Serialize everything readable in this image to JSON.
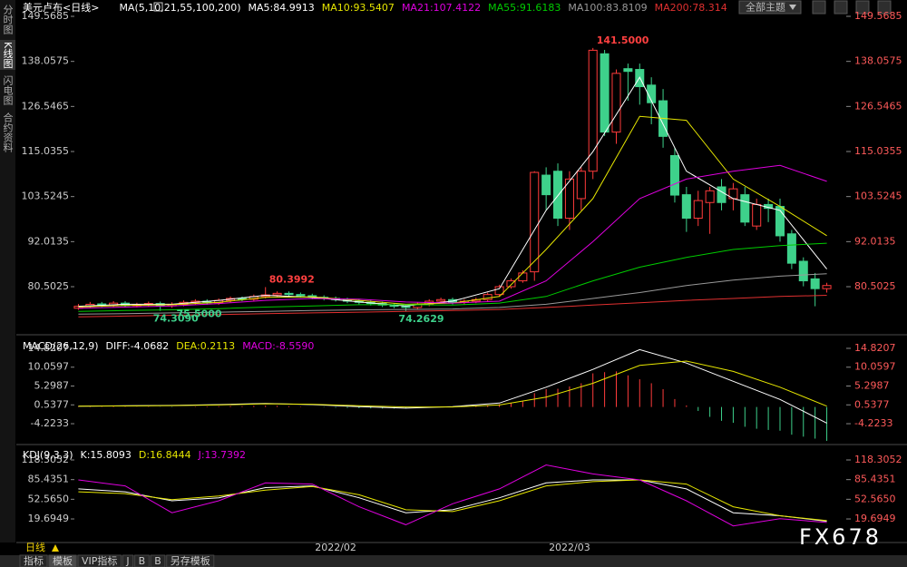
{
  "sidebar": [
    "分时图",
    "K线图",
    "闪电图",
    "合约资料"
  ],
  "toolbar": {
    "theme_button": "全部主题"
  },
  "chart_data": [
    {
      "type": "candlestick",
      "title": "美元卢布<日线>",
      "indicator": "MA(5,10,21,55,100,200)",
      "categories": [
        null,
        null,
        null,
        null,
        null,
        null,
        null,
        null,
        null,
        null,
        null,
        null,
        null,
        null,
        null,
        null,
        null,
        null,
        null,
        null,
        null,
        null,
        "2022/02",
        null,
        null,
        null,
        null,
        null,
        null,
        null,
        null,
        null,
        null,
        null,
        null,
        null,
        null,
        null,
        null,
        null,
        null,
        null,
        "2022/03",
        null,
        null,
        null,
        null,
        null,
        null,
        null,
        null,
        null,
        null,
        null,
        null,
        null,
        null,
        null,
        null,
        null,
        null,
        null,
        null,
        null,
        null
      ],
      "open": [
        75.0,
        75.5,
        76.1,
        75.8,
        76.3,
        75.7,
        75.9,
        76.2,
        75.6,
        76.0,
        76.5,
        76.8,
        76.4,
        77.0,
        77.5,
        77.3,
        78.0,
        78.4,
        78.8,
        78.5,
        78.2,
        77.8,
        77.5,
        77.2,
        76.8,
        76.5,
        76.2,
        75.8,
        75.5,
        75.2,
        76.0,
        76.8,
        77.2,
        76.5,
        76.8,
        77.2,
        78.5,
        80.5,
        82.0,
        84.3,
        109,
        110,
        98,
        103,
        110,
        140,
        120,
        136.2,
        136,
        132,
        128,
        114,
        104,
        98,
        102,
        106,
        103,
        104,
        96,
        101.5,
        101,
        94,
        87,
        82.5,
        80
      ],
      "high": [
        76.1,
        76.6,
        76.6,
        76.8,
        76.8,
        76.4,
        76.7,
        76.7,
        76.5,
        77.0,
        77.3,
        77.3,
        77.5,
        78.0,
        78.0,
        78.5,
        80.3992,
        79.3,
        79.3,
        79.0,
        78.7,
        78.3,
        78.0,
        77.7,
        77.3,
        77.0,
        76.7,
        76.3,
        76.0,
        76.5,
        77.3,
        77.7,
        77.7,
        77.3,
        77.7,
        79.0,
        81.0,
        82.6,
        84.7,
        110,
        111,
        112,
        110,
        111,
        141.5,
        141,
        136,
        137.5,
        137.5,
        134,
        131,
        116,
        106,
        105,
        106,
        108,
        107,
        106,
        103,
        103,
        103,
        95,
        88,
        84,
        81.5
      ],
      "low": [
        74.6,
        75.0,
        75.3,
        75.3,
        75.2,
        75.2,
        75.4,
        74.309,
        75.1,
        75.5,
        76.0,
        75.9,
        75.9,
        76.5,
        76.8,
        76.8,
        77.5,
        77.9,
        78.0,
        77.7,
        77.3,
        77.0,
        76.7,
        76.3,
        76.0,
        75.7,
        75.3,
        75.0,
        74.2629,
        74.7,
        75.5,
        76.3,
        76.0,
        76.0,
        76.3,
        76.7,
        78.0,
        80.0,
        81.5,
        82,
        100,
        96,
        95,
        100,
        108,
        119,
        117,
        128,
        127,
        122,
        116,
        102,
        94.5,
        96,
        94,
        100,
        100,
        96,
        95,
        97,
        92,
        85,
        80.6,
        75.5,
        79
      ],
      "close": [
        75.5,
        76.0,
        75.8,
        76.3,
        75.7,
        75.9,
        76.2,
        75.6,
        76.0,
        76.5,
        76.8,
        76.4,
        77.0,
        77.5,
        77.3,
        78.0,
        78.4,
        78.8,
        78.5,
        78.2,
        77.8,
        77.5,
        77.2,
        76.8,
        76.5,
        76.2,
        75.8,
        75.5,
        75.2,
        76.0,
        76.8,
        77.2,
        76.5,
        76.8,
        77.2,
        78.5,
        80.5,
        82.0,
        84.0,
        109.7,
        104,
        98,
        108,
        110,
        140.9,
        120,
        135,
        135.5,
        131.6,
        127.5,
        118.9,
        103.9,
        98,
        102.5,
        105,
        102,
        105.5,
        97,
        101.5,
        100.5,
        93.5,
        86.5,
        82,
        80,
        80.8
      ],
      "up_color": "#ff3b3b",
      "down_color": "#3ed18b",
      "ylim": [
        69.15,
        149.5685
      ],
      "yticks": [
        80.5025,
        92.0135,
        103.5245,
        115.0355,
        126.5465,
        138.0575,
        149.5685
      ],
      "annotations": [
        {
          "value": 141.5,
          "label": "141.5000",
          "color": "#ff4040"
        },
        {
          "value": 80.3992,
          "label": "80.3992",
          "color": "#ff4040"
        },
        {
          "value": 74.309,
          "label": "74.3090",
          "color": "#3ed18b"
        },
        {
          "value": 74.2629,
          "label": "74.2629",
          "color": "#3ed18b"
        },
        {
          "value": 75.5,
          "label": "75.5000",
          "color": "#3ed18b"
        }
      ],
      "x": [
        0,
        4,
        8,
        12,
        16,
        20,
        24,
        28,
        32,
        36,
        40,
        44,
        48,
        52,
        56,
        60,
        64
      ],
      "series": [
        {
          "name": "MA5:84.9913",
          "color": "#ffffff",
          "values": [
            75.5,
            76,
            76,
            77,
            78.3,
            77.8,
            76.6,
            75.6,
            76.8,
            80,
            100,
            115,
            134,
            110,
            103,
            100,
            84.9913
          ]
        },
        {
          "name": "MA10:93.5407",
          "color": "#e6e600",
          "values": [
            75.3,
            75.7,
            75.9,
            76.5,
            77.8,
            77.9,
            77,
            76,
            76.3,
            78,
            90,
            103,
            124,
            123,
            108,
            101,
            93.5407
          ]
        },
        {
          "name": "MA21:107.4122",
          "color": "#e000e0",
          "values": [
            75,
            75.3,
            75.6,
            76.2,
            77,
            77.5,
            77.3,
            76.6,
            76.3,
            76.8,
            82,
            92,
            103,
            108,
            110,
            111.5,
            107.4122
          ]
        },
        {
          "name": "MA55:91.6183",
          "color": "#00cc00",
          "values": [
            74.2,
            74.4,
            74.6,
            74.9,
            75.3,
            75.6,
            75.9,
            75.9,
            75.8,
            76.3,
            78,
            82,
            85.5,
            88,
            90,
            91,
            91.6183
          ]
        },
        {
          "name": "MA100:83.8109",
          "color": "#999999",
          "values": [
            73.5,
            73.6,
            73.8,
            74,
            74.2,
            74.4,
            74.6,
            74.7,
            74.8,
            75.2,
            76,
            77.5,
            79,
            80.8,
            82.2,
            83.2,
            83.8109
          ]
        },
        {
          "name": "MA200:78.314",
          "color": "#e03030",
          "values": [
            72.8,
            73,
            73.2,
            73.4,
            73.6,
            73.8,
            74,
            74.2,
            74.4,
            74.7,
            75.2,
            75.8,
            76.4,
            77,
            77.5,
            78,
            78.314
          ]
        }
      ]
    },
    {
      "type": "macd",
      "title": "MACD(26,12,9)",
      "ylim": [
        -9.03,
        16.88
      ],
      "yticks": [
        -4.2233,
        0.5377,
        5.2987,
        10.0597,
        14.8207
      ],
      "histogram_name": "MACD:-8.5590",
      "histogram_name_color": "#e000e0",
      "up_color": "#ff3b3b",
      "down_color": "#3ed18b",
      "histogram": [
        0.1,
        0.15,
        0.1,
        0.2,
        0.1,
        0.05,
        0.1,
        -0.05,
        -0.1,
        0,
        0.1,
        0.15,
        0.2,
        0.25,
        0.2,
        0.3,
        0.35,
        0.3,
        0.2,
        0.1,
        0,
        -0.1,
        -0.2,
        -0.25,
        -0.3,
        -0.35,
        -0.4,
        -0.4,
        -0.35,
        -0.2,
        -0.1,
        0,
        0,
        0.1,
        0.2,
        0.4,
        0.7,
        1.0,
        1.5,
        3.5,
        4.5,
        4.6,
        5.2,
        6.0,
        8.5,
        8.8,
        9.0,
        8.0,
        7.0,
        6.0,
        4.5,
        2.0,
        0.4,
        -1.0,
        -2.5,
        -3.5,
        -4.0,
        -5.0,
        -5.5,
        -5.8,
        -6.0,
        -7.0,
        -7.5,
        -8.0,
        -8.559
      ],
      "x": [
        0,
        4,
        8,
        12,
        16,
        20,
        24,
        28,
        32,
        36,
        40,
        44,
        48,
        52,
        56,
        60,
        64
      ],
      "series": [
        {
          "name": "DIFF:-4.0682",
          "color": "#ffffff",
          "values": [
            0.2,
            0.3,
            0.4,
            0.6,
            0.9,
            0.6,
            0.1,
            -0.3,
            0.1,
            1.0,
            5.0,
            9.5,
            14.5,
            11.1,
            6.5,
            1.9,
            -4.0682
          ]
        },
        {
          "name": "DEA:0.2113",
          "color": "#e6e600",
          "values": [
            0.2,
            0.25,
            0.35,
            0.5,
            0.8,
            0.7,
            0.3,
            0,
            0,
            0.5,
            2.5,
            6,
            10.5,
            11.6,
            9,
            5,
            0.2113
          ]
        }
      ]
    },
    {
      "type": "kdj",
      "title": "KDJ(9,3,3)",
      "ylim": [
        -19.7,
        136.5
      ],
      "yticks": [
        19.6949,
        {
          "value": 52.565,
          "label": "52.5650"
        },
        85.4351,
        118.3052
      ],
      "x": [
        0,
        4,
        8,
        12,
        16,
        20,
        24,
        28,
        32,
        36,
        40,
        44,
        48,
        52,
        56,
        60,
        64
      ],
      "series": [
        {
          "name": "K:15.8093",
          "color": "#ffffff",
          "values": [
            70,
            65,
            50,
            55,
            72,
            75,
            55,
            30,
            35,
            55,
            80,
            85,
            85,
            70,
            30,
            25,
            15.8093
          ]
        },
        {
          "name": "D:16.8444",
          "color": "#e6e600",
          "values": [
            65,
            62,
            52,
            58,
            68,
            74,
            60,
            35,
            32,
            50,
            75,
            82,
            85,
            78,
            40,
            25,
            16.8444
          ]
        },
        {
          "name": "J:13.7392",
          "color": "#e000e0",
          "values": [
            85,
            75,
            30,
            50,
            80,
            78,
            40,
            10,
            45,
            70,
            110,
            95,
            85,
            50,
            8,
            20,
            13.7392
          ]
        }
      ]
    }
  ],
  "footer": {
    "period": "日线",
    "tabs": [
      "指标",
      "模板",
      "VIP指标",
      "J",
      "B",
      "B",
      "另存模板"
    ]
  },
  "watermark": "FX678"
}
